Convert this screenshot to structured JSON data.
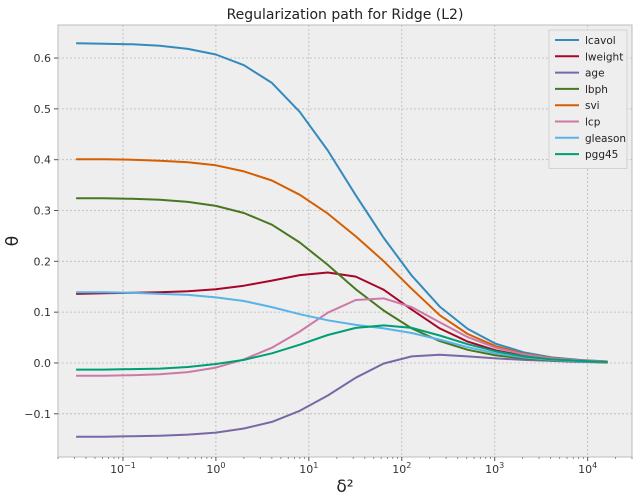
{
  "chart_data": {
    "type": "line",
    "title": "Regularization path for Ridge (L2)",
    "xlabel": "δ²",
    "ylabel": "θ",
    "xscale": "log",
    "xlim": [
      0.02,
      30000
    ],
    "ylim": [
      -0.185,
      0.665
    ],
    "x_ticks": [
      {
        "value": 0.1,
        "base": "10",
        "exp": "−1"
      },
      {
        "value": 1,
        "base": "10",
        "exp": "0"
      },
      {
        "value": 10,
        "base": "10",
        "exp": "1"
      },
      {
        "value": 100,
        "base": "10",
        "exp": "2"
      },
      {
        "value": 1000,
        "base": "10",
        "exp": "3"
      },
      {
        "value": 10000,
        "base": "10",
        "exp": "4"
      }
    ],
    "y_ticks": [
      {
        "value": -0.1,
        "label": "−0.1"
      },
      {
        "value": 0.0,
        "label": "0.0"
      },
      {
        "value": 0.1,
        "label": "0.1"
      },
      {
        "value": 0.2,
        "label": "0.2"
      },
      {
        "value": 0.3,
        "label": "0.3"
      },
      {
        "value": 0.4,
        "label": "0.4"
      },
      {
        "value": 0.5,
        "label": "0.5"
      },
      {
        "value": 0.6,
        "label": "0.6"
      }
    ],
    "grid": true,
    "legend_position": "top-right",
    "x": [
      0.0313,
      0.0625,
      0.125,
      0.25,
      0.5,
      1,
      2,
      4,
      8,
      16,
      32,
      64,
      128,
      256,
      512,
      1024,
      2048,
      4096,
      8192,
      16384
    ],
    "series": [
      {
        "name": "lcavol",
        "color": "#348abd",
        "values": [
          0.629,
          0.628,
          0.627,
          0.624,
          0.618,
          0.607,
          0.586,
          0.551,
          0.494,
          0.418,
          0.33,
          0.246,
          0.172,
          0.111,
          0.067,
          0.038,
          0.021,
          0.011,
          0.006,
          0.003
        ]
      },
      {
        "name": "lweight",
        "color": "#a60628",
        "values": [
          0.136,
          0.137,
          0.138,
          0.139,
          0.141,
          0.145,
          0.152,
          0.162,
          0.173,
          0.178,
          0.17,
          0.144,
          0.105,
          0.068,
          0.042,
          0.025,
          0.014,
          0.008,
          0.004,
          0.002
        ]
      },
      {
        "name": "age",
        "color": "#7a68a6",
        "values": [
          -0.145,
          -0.145,
          -0.144,
          -0.143,
          -0.141,
          -0.137,
          -0.129,
          -0.116,
          -0.094,
          -0.064,
          -0.029,
          -0.001,
          0.013,
          0.016,
          0.013,
          0.009,
          0.006,
          0.004,
          0.002,
          0.001
        ]
      },
      {
        "name": "lbph",
        "color": "#467821",
        "values": [
          0.324,
          0.324,
          0.323,
          0.321,
          0.317,
          0.309,
          0.295,
          0.272,
          0.237,
          0.193,
          0.145,
          0.103,
          0.068,
          0.043,
          0.026,
          0.015,
          0.009,
          0.005,
          0.003,
          0.001
        ]
      },
      {
        "name": "svi",
        "color": "#d55e00",
        "values": [
          0.401,
          0.401,
          0.4,
          0.398,
          0.395,
          0.389,
          0.377,
          0.359,
          0.331,
          0.294,
          0.249,
          0.2,
          0.146,
          0.094,
          0.057,
          0.033,
          0.018,
          0.01,
          0.005,
          0.003
        ]
      },
      {
        "name": "lcp",
        "color": "#cc79a7",
        "values": [
          -0.025,
          -0.025,
          -0.024,
          -0.022,
          -0.018,
          -0.009,
          0.007,
          0.03,
          0.062,
          0.099,
          0.124,
          0.127,
          0.11,
          0.08,
          0.051,
          0.03,
          0.017,
          0.009,
          0.005,
          0.003
        ]
      },
      {
        "name": "gleason",
        "color": "#56b4e9",
        "values": [
          0.139,
          0.139,
          0.138,
          0.136,
          0.134,
          0.129,
          0.122,
          0.11,
          0.096,
          0.084,
          0.075,
          0.068,
          0.059,
          0.046,
          0.031,
          0.019,
          0.011,
          0.006,
          0.003,
          0.002
        ]
      },
      {
        "name": "pgg45",
        "color": "#009e73",
        "values": [
          -0.013,
          -0.013,
          -0.012,
          -0.011,
          -0.008,
          -0.002,
          0.006,
          0.019,
          0.036,
          0.055,
          0.069,
          0.074,
          0.069,
          0.054,
          0.037,
          0.023,
          0.013,
          0.007,
          0.004,
          0.002
        ]
      }
    ]
  },
  "colors": {
    "plot_background": "#eeeeee",
    "grid": "#b8b8b8",
    "frame": "#bcbcbc"
  }
}
